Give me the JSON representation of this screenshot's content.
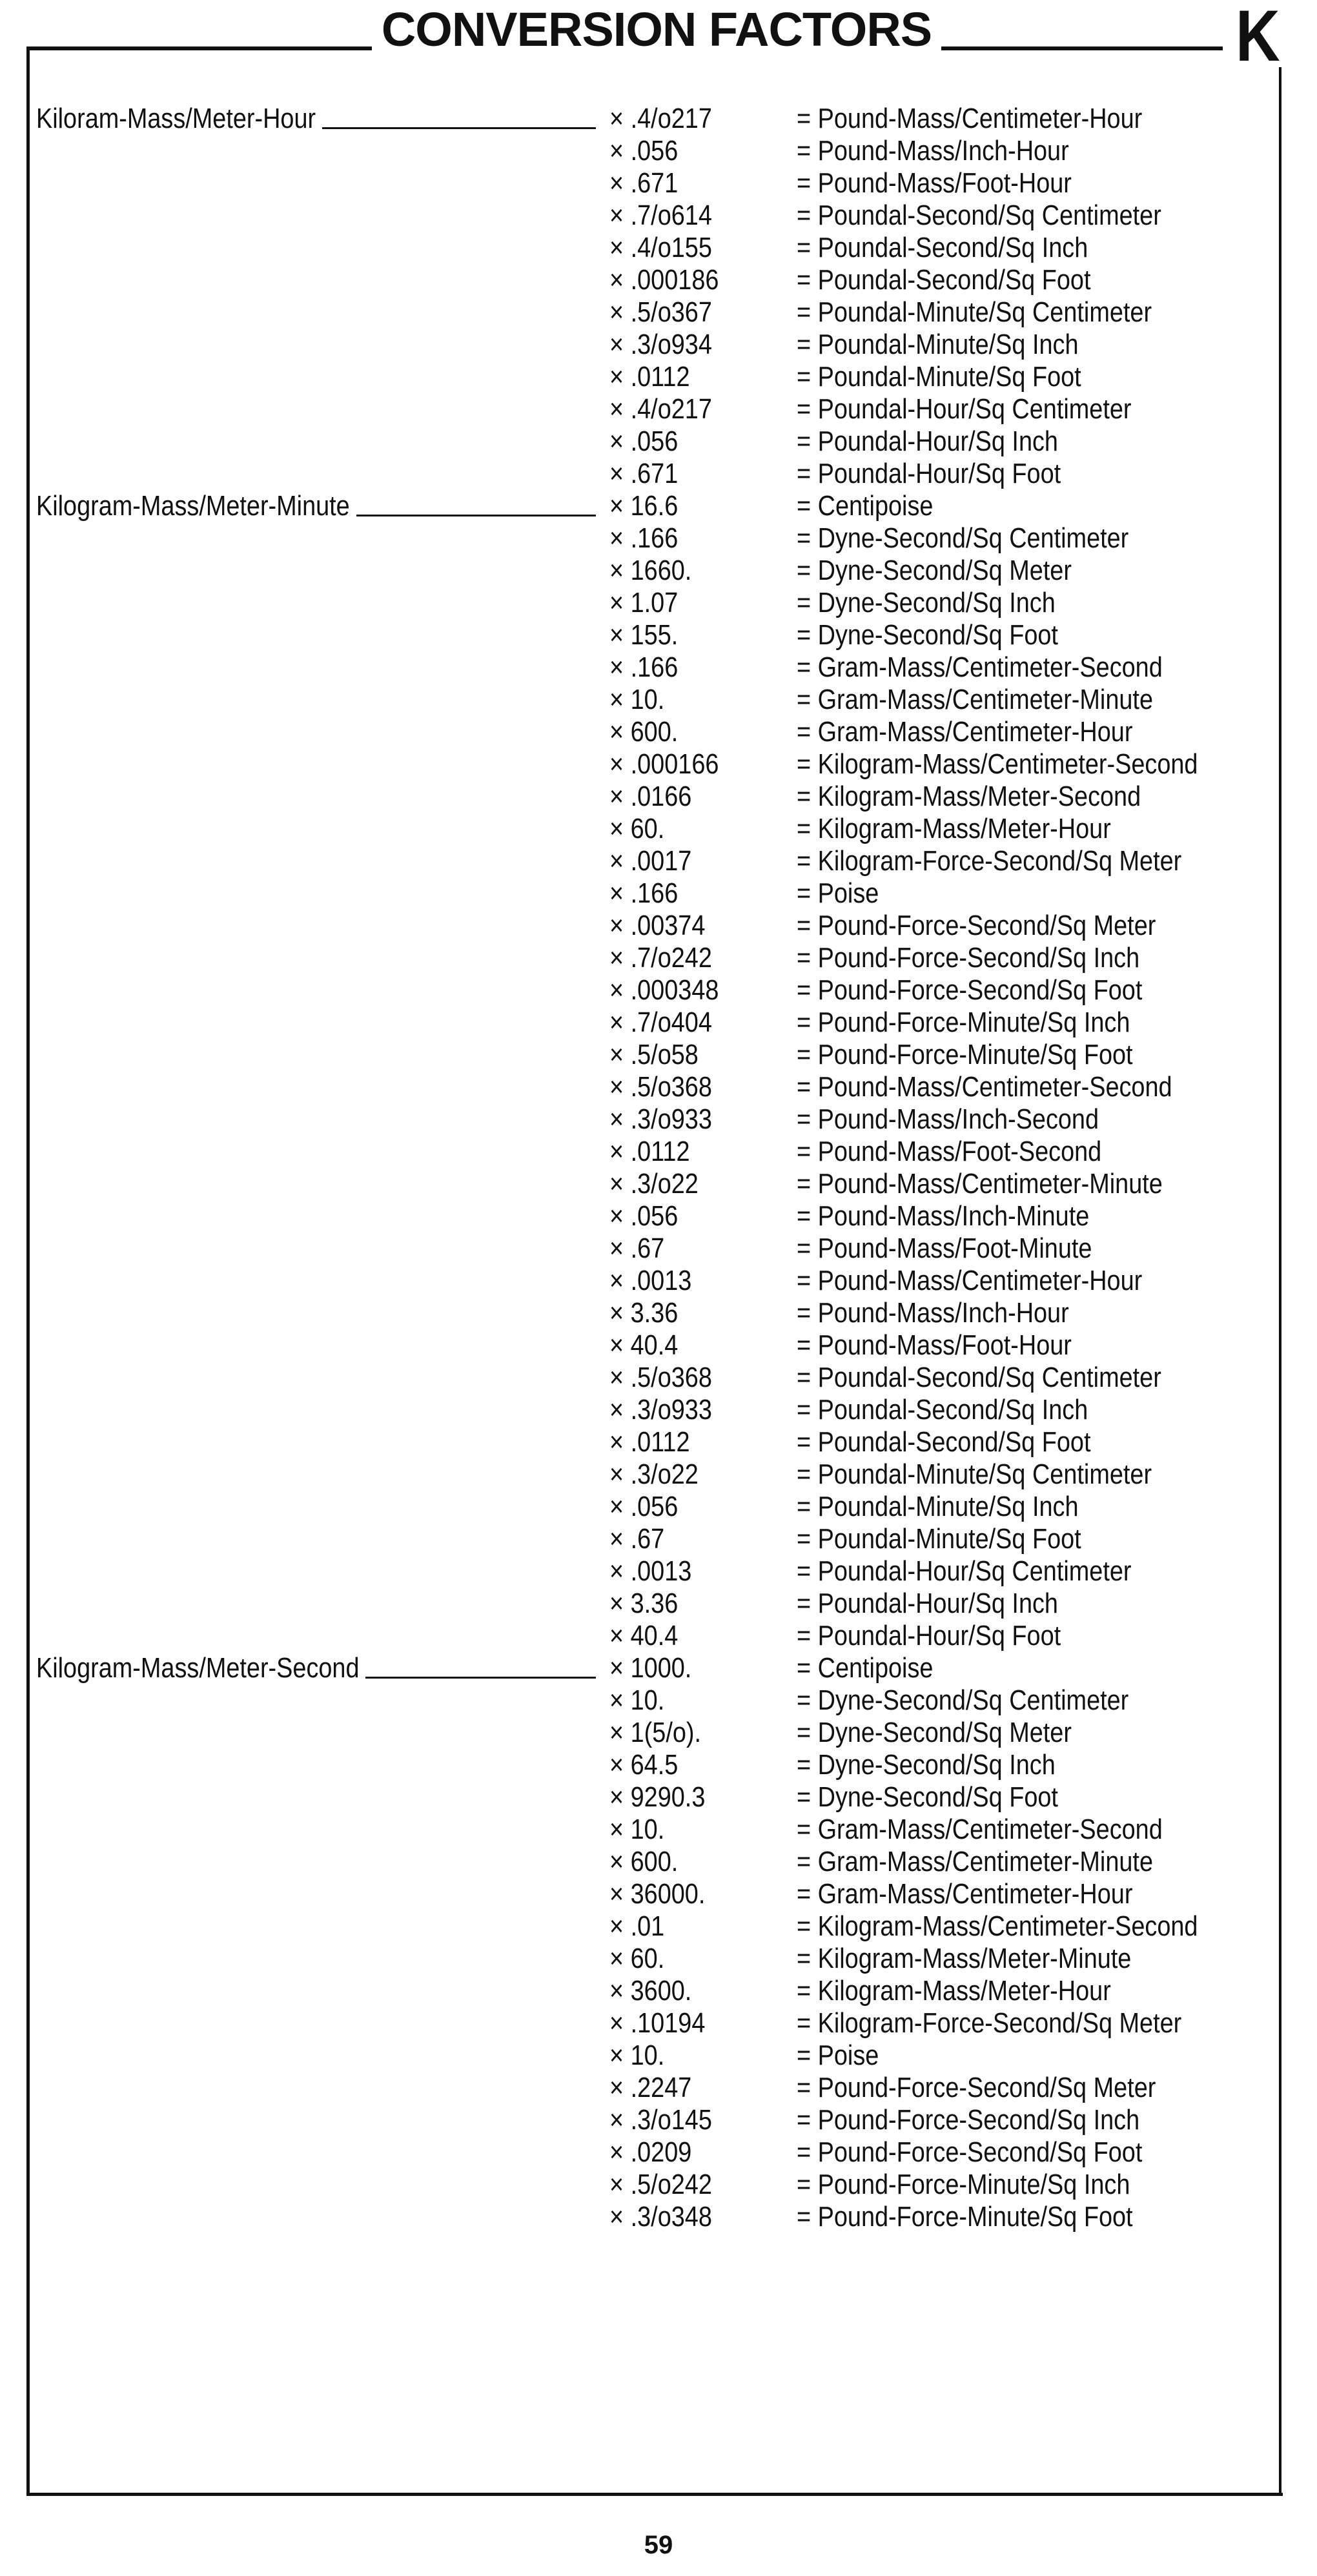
{
  "header": {
    "title": "CONVERSION FACTORS",
    "section_letter": "K"
  },
  "symbols": {
    "multiply": "×",
    "equals": "="
  },
  "sections": [
    {
      "label": "Kiloram-Mass/Meter-Hour",
      "rows": [
        {
          "factor": ".4/o217",
          "unit": "Pound-Mass/Centimeter-Hour"
        },
        {
          "factor": ".056",
          "unit": "Pound-Mass/Inch-Hour"
        },
        {
          "factor": ".671",
          "unit": "Pound-Mass/Foot-Hour"
        },
        {
          "factor": ".7/o614",
          "unit": "Poundal-Second/Sq Centimeter"
        },
        {
          "factor": ".4/o155",
          "unit": "Poundal-Second/Sq Inch"
        },
        {
          "factor": ".000186",
          "unit": "Poundal-Second/Sq Foot"
        },
        {
          "factor": ".5/o367",
          "unit": "Poundal-Minute/Sq Centimeter"
        },
        {
          "factor": ".3/o934",
          "unit": "Poundal-Minute/Sq Inch"
        },
        {
          "factor": ".0112",
          "unit": "Poundal-Minute/Sq Foot"
        },
        {
          "factor": ".4/o217",
          "unit": "Poundal-Hour/Sq Centimeter"
        },
        {
          "factor": ".056",
          "unit": "Poundal-Hour/Sq Inch"
        },
        {
          "factor": ".671",
          "unit": "Poundal-Hour/Sq Foot"
        }
      ]
    },
    {
      "label": "Kilogram-Mass/Meter-Minute",
      "rows": [
        {
          "factor": "16.6",
          "unit": "Centipoise"
        },
        {
          "factor": ".166",
          "unit": "Dyne-Second/Sq Centimeter"
        },
        {
          "factor": "1660.",
          "unit": "Dyne-Second/Sq Meter"
        },
        {
          "factor": "1.07",
          "unit": "Dyne-Second/Sq Inch"
        },
        {
          "factor": "155.",
          "unit": "Dyne-Second/Sq Foot"
        },
        {
          "factor": ".166",
          "unit": "Gram-Mass/Centimeter-Second"
        },
        {
          "factor": "10.",
          "unit": "Gram-Mass/Centimeter-Minute"
        },
        {
          "factor": "600.",
          "unit": "Gram-Mass/Centimeter-Hour"
        },
        {
          "factor": ".000166",
          "unit": "Kilogram-Mass/Centimeter-Second"
        },
        {
          "factor": ".0166",
          "unit": "Kilogram-Mass/Meter-Second"
        },
        {
          "factor": "60.",
          "unit": "Kilogram-Mass/Meter-Hour"
        },
        {
          "factor": ".0017",
          "unit": "Kilogram-Force-Second/Sq Meter"
        },
        {
          "factor": ".166",
          "unit": "Poise"
        },
        {
          "factor": ".00374",
          "unit": "Pound-Force-Second/Sq Meter"
        },
        {
          "factor": ".7/o242",
          "unit": "Pound-Force-Second/Sq Inch"
        },
        {
          "factor": ".000348",
          "unit": "Pound-Force-Second/Sq Foot"
        },
        {
          "factor": ".7/o404",
          "unit": "Pound-Force-Minute/Sq Inch"
        },
        {
          "factor": ".5/o58",
          "unit": "Pound-Force-Minute/Sq Foot"
        },
        {
          "factor": ".5/o368",
          "unit": "Pound-Mass/Centimeter-Second"
        },
        {
          "factor": ".3/o933",
          "unit": "Pound-Mass/Inch-Second"
        },
        {
          "factor": ".0112",
          "unit": "Pound-Mass/Foot-Second"
        },
        {
          "factor": ".3/o22",
          "unit": "Pound-Mass/Centimeter-Minute"
        },
        {
          "factor": ".056",
          "unit": "Pound-Mass/Inch-Minute"
        },
        {
          "factor": ".67",
          "unit": "Pound-Mass/Foot-Minute"
        },
        {
          "factor": ".0013",
          "unit": "Pound-Mass/Centimeter-Hour"
        },
        {
          "factor": "3.36",
          "unit": "Pound-Mass/Inch-Hour"
        },
        {
          "factor": "40.4",
          "unit": "Pound-Mass/Foot-Hour"
        },
        {
          "factor": ".5/o368",
          "unit": "Poundal-Second/Sq Centimeter"
        },
        {
          "factor": ".3/o933",
          "unit": "Poundal-Second/Sq Inch"
        },
        {
          "factor": ".0112",
          "unit": "Poundal-Second/Sq Foot"
        },
        {
          "factor": ".3/o22",
          "unit": "Poundal-Minute/Sq Centimeter"
        },
        {
          "factor": ".056",
          "unit": "Poundal-Minute/Sq Inch"
        },
        {
          "factor": ".67",
          "unit": "Poundal-Minute/Sq Foot"
        },
        {
          "factor": ".0013",
          "unit": "Poundal-Hour/Sq Centimeter"
        },
        {
          "factor": "3.36",
          "unit": "Poundal-Hour/Sq Inch"
        },
        {
          "factor": "40.4",
          "unit": "Poundal-Hour/Sq Foot"
        }
      ]
    },
    {
      "label": "Kilogram-Mass/Meter-Second",
      "rows": [
        {
          "factor": "1000.",
          "unit": "Centipoise"
        },
        {
          "factor": "10.",
          "unit": "Dyne-Second/Sq Centimeter"
        },
        {
          "factor": "1(5/o).",
          "unit": "Dyne-Second/Sq Meter"
        },
        {
          "factor": "64.5",
          "unit": "Dyne-Second/Sq Inch"
        },
        {
          "factor": "9290.3",
          "unit": "Dyne-Second/Sq Foot"
        },
        {
          "factor": "10.",
          "unit": "Gram-Mass/Centimeter-Second"
        },
        {
          "factor": "600.",
          "unit": "Gram-Mass/Centimeter-Minute"
        },
        {
          "factor": "36000.",
          "unit": "Gram-Mass/Centimeter-Hour"
        },
        {
          "factor": ".01",
          "unit": "Kilogram-Mass/Centimeter-Second"
        },
        {
          "factor": "60.",
          "unit": "Kilogram-Mass/Meter-Minute"
        },
        {
          "factor": "3600.",
          "unit": "Kilogram-Mass/Meter-Hour"
        },
        {
          "factor": ".10194",
          "unit": "Kilogram-Force-Second/Sq Meter"
        },
        {
          "factor": "10.",
          "unit": "Poise"
        },
        {
          "factor": ".2247",
          "unit": "Pound-Force-Second/Sq Meter"
        },
        {
          "factor": ".3/o145",
          "unit": "Pound-Force-Second/Sq Inch"
        },
        {
          "factor": ".0209",
          "unit": "Pound-Force-Second/Sq Foot"
        },
        {
          "factor": ".5/o242",
          "unit": "Pound-Force-Minute/Sq Inch"
        },
        {
          "factor": ".3/o348",
          "unit": "Pound-Force-Minute/Sq Foot"
        }
      ]
    }
  ],
  "footer": {
    "page_number": "59"
  }
}
